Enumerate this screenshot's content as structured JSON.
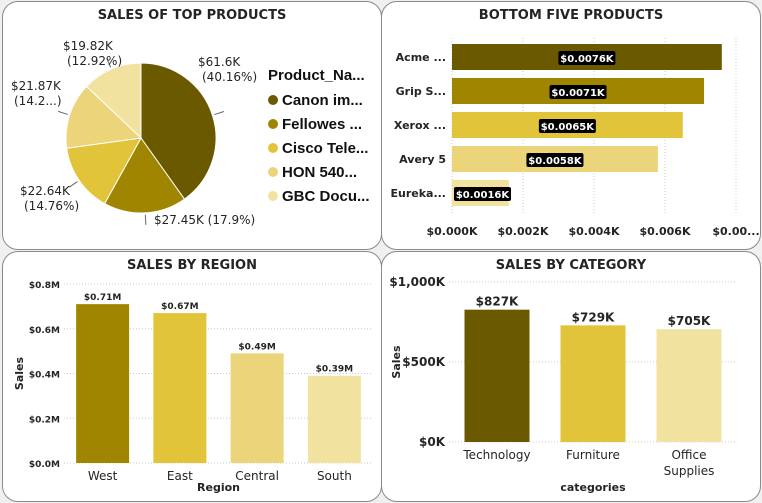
{
  "panels": {
    "top_products": {
      "title": "SALES OF TOP PRODUCTS",
      "legend_title": "Product_Na...",
      "chart_data": {
        "type": "pie",
        "slices": [
          {
            "legend": "Canon im...",
            "value": 61.6,
            "label": "$61.6K",
            "pct": "(40.16%)",
            "color": "#6b5900"
          },
          {
            "legend": "Fellowes ...",
            "value": 27.45,
            "label": "$27.45K (17.9%)",
            "pct": "",
            "color": "#a08600"
          },
          {
            "legend": "Cisco Tele...",
            "value": 22.64,
            "label": "$22.64K",
            "pct": "(14.76%)",
            "color": "#e2c43a"
          },
          {
            "legend": "HON 540...",
            "value": 21.87,
            "label": "$21.87K",
            "pct": "(14.2...)",
            "color": "#ebd47a"
          },
          {
            "legend": "GBC Docu...",
            "value": 19.82,
            "label": "$19.82K",
            "pct": "(12.92%)",
            "color": "#f1e2a0"
          }
        ]
      }
    },
    "bottom_products": {
      "title": "BOTTOM FIVE PRODUCTS",
      "chart_data": {
        "type": "bar",
        "orientation": "horizontal",
        "categories": [
          "Acme ...",
          "Grip S...",
          "Xerox ...",
          "Avery 5",
          "Eureka..."
        ],
        "values": [
          0.0076,
          0.0071,
          0.0065,
          0.0058,
          0.0016
        ],
        "labels": [
          "$0.0076K",
          "$0.0071K",
          "$0.0065K",
          "$0.0058K",
          "$0.0016K"
        ],
        "colors": [
          "#6b5900",
          "#a08600",
          "#e2c43a",
          "#ebd47a",
          "#f1e2a0"
        ],
        "xlim": [
          0,
          0.008
        ],
        "xticks": [
          0,
          0.002,
          0.004,
          0.006,
          0.008
        ],
        "xtick_labels": [
          "$0.000K",
          "$0.002K",
          "$0.004K",
          "$0.006K",
          "$0.00..."
        ],
        "grid": true
      }
    },
    "region": {
      "title": "SALES BY REGION",
      "chart_data": {
        "type": "bar",
        "categories": [
          "West",
          "East",
          "Central",
          "South"
        ],
        "values": [
          0.71,
          0.67,
          0.49,
          0.39
        ],
        "labels": [
          "$0.71M",
          "$0.67M",
          "$0.49M",
          "$0.39M"
        ],
        "colors": [
          "#a08600",
          "#e2c43a",
          "#ebd47a",
          "#f1e2a0"
        ],
        "ylim": [
          0,
          0.8
        ],
        "yticks": [
          0,
          0.2,
          0.4,
          0.6,
          0.8
        ],
        "ytick_labels": [
          "$0.0M",
          "$0.2M",
          "$0.4M",
          "$0.6M",
          "$0.8M"
        ],
        "xlabel": "Region",
        "ylabel": "Sales",
        "grid": true
      }
    },
    "category": {
      "title": "SALES BY CATEGORY",
      "chart_data": {
        "type": "bar",
        "categories": [
          "Technology",
          "Furniture",
          "Office Supplies"
        ],
        "category_lines": [
          [
            "Technology"
          ],
          [
            "Furniture"
          ],
          [
            "Office",
            "Supplies"
          ]
        ],
        "values": [
          827,
          729,
          705
        ],
        "labels": [
          "$827K",
          "$729K",
          "$705K"
        ],
        "colors": [
          "#6b5900",
          "#e2c43a",
          "#f1e2a0"
        ],
        "ylim": [
          0,
          1000
        ],
        "yticks": [
          0,
          500,
          1000
        ],
        "ytick_labels": [
          "$0K",
          "$500K",
          "$1,000K"
        ],
        "xlabel": "categories",
        "ylabel": "Sales",
        "grid": true
      }
    }
  }
}
